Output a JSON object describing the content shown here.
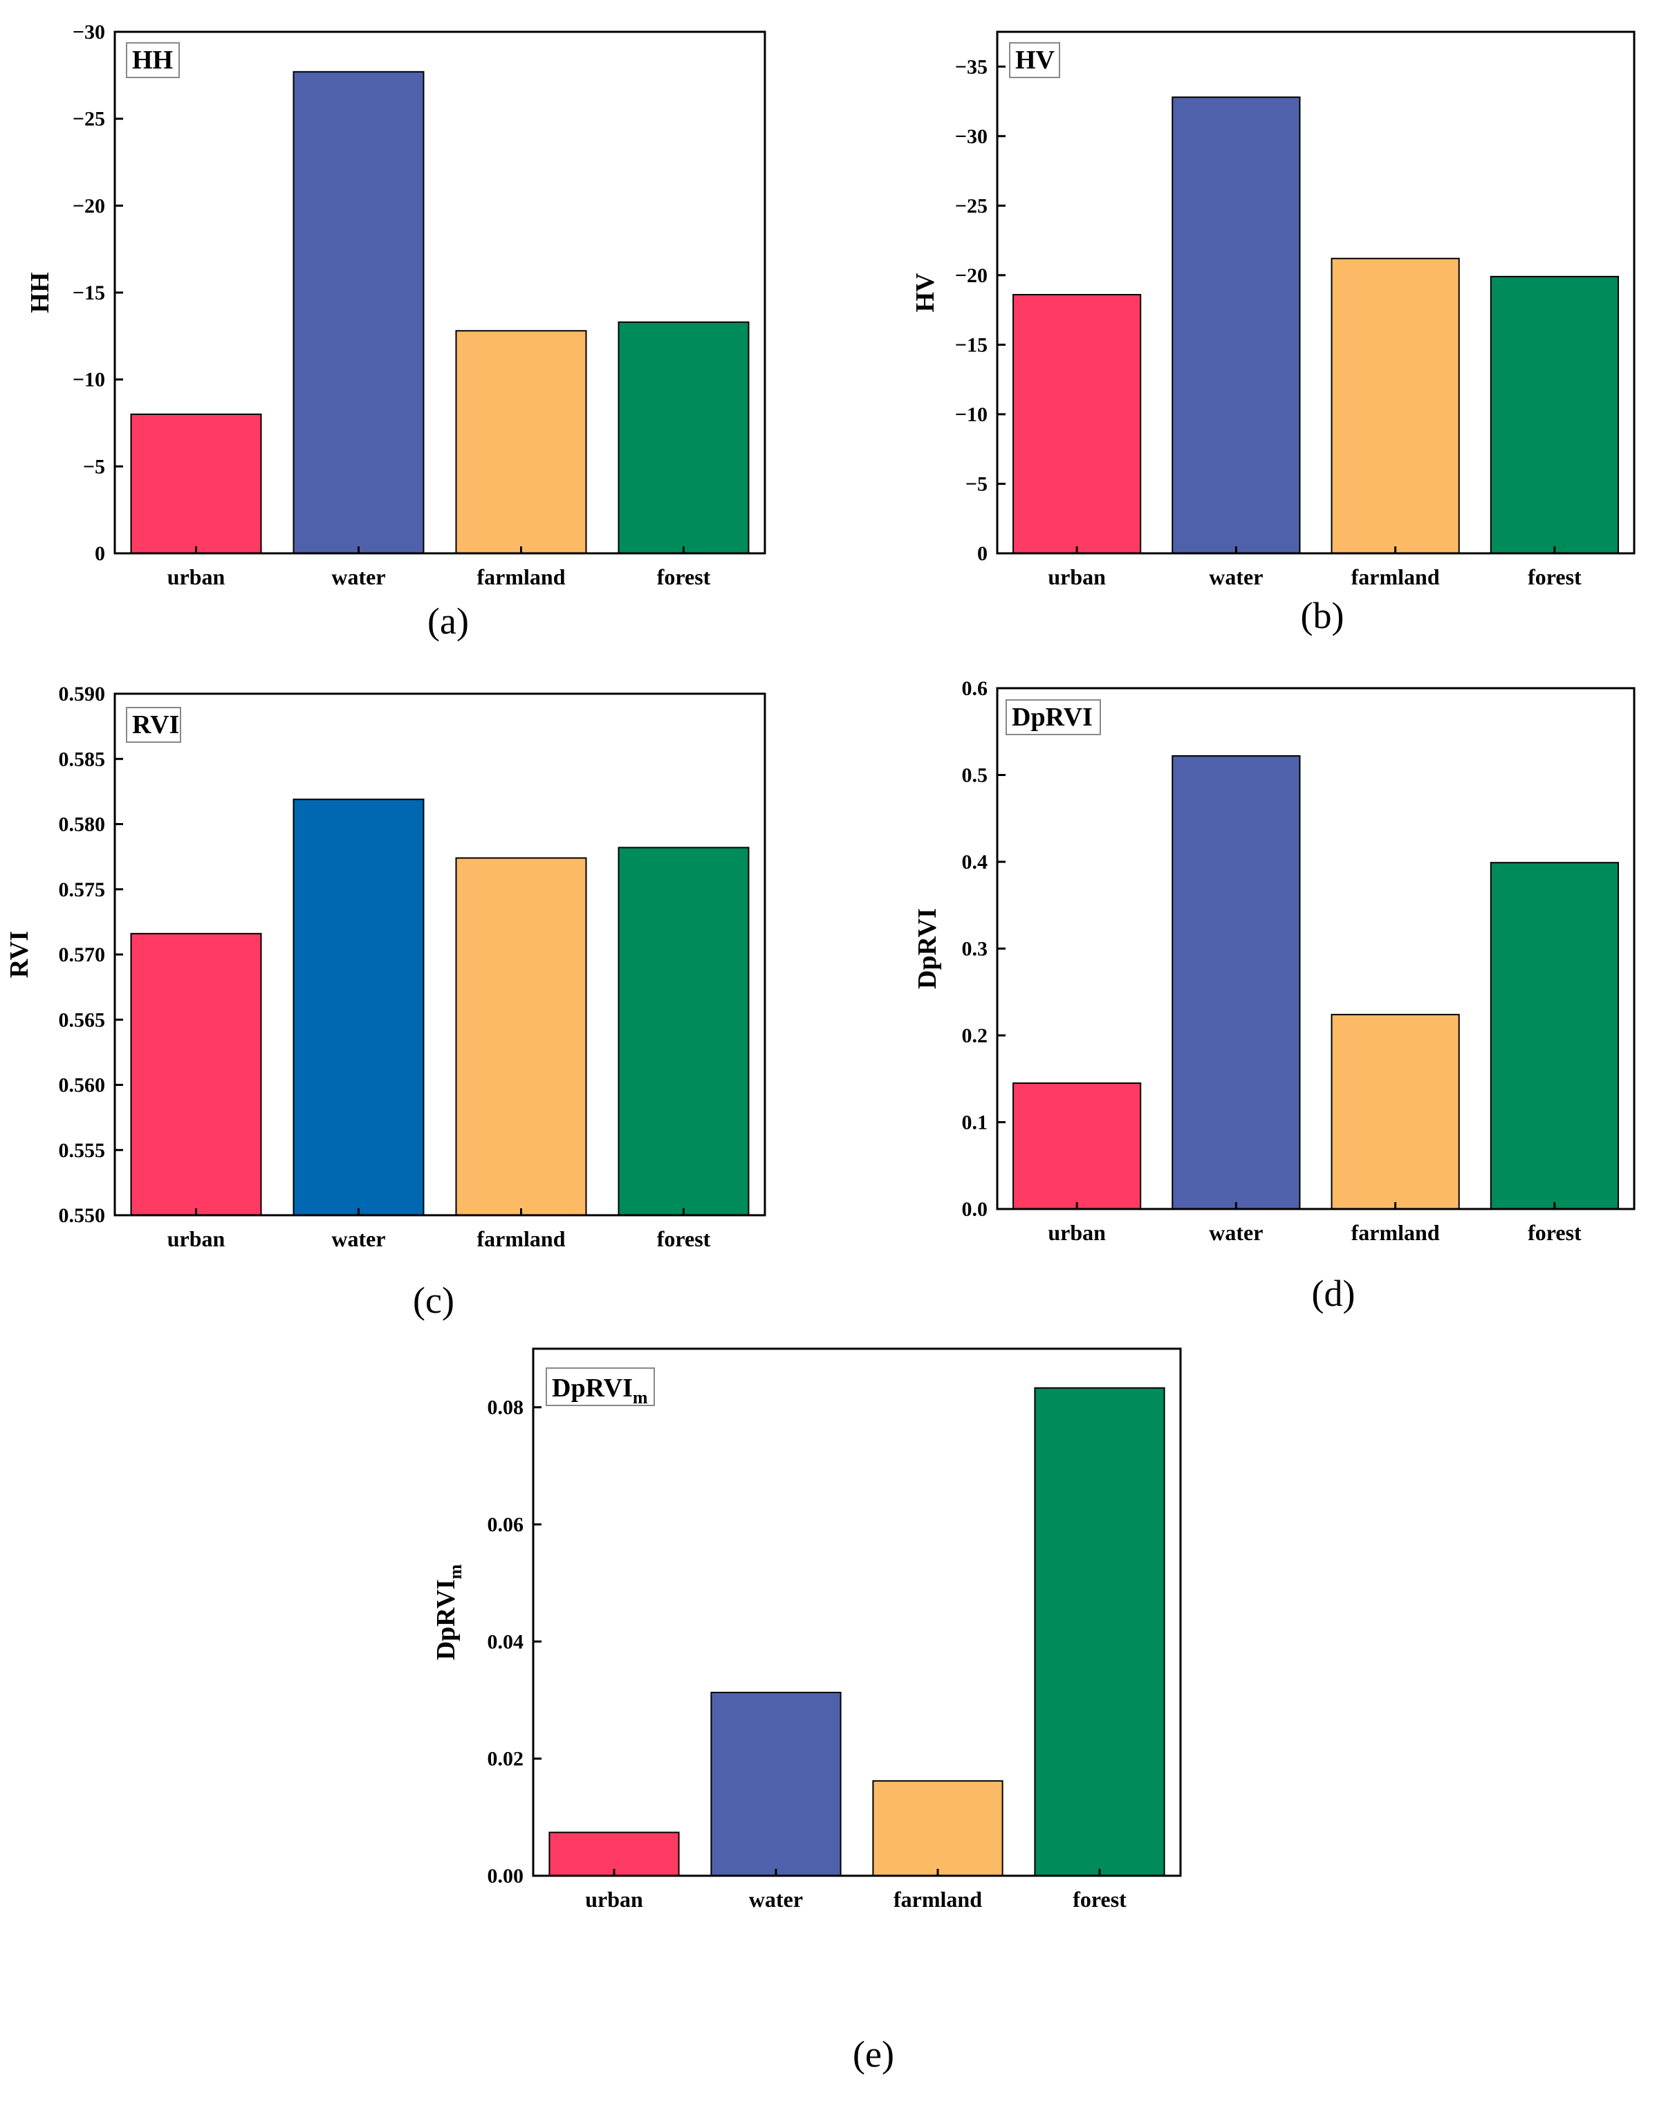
{
  "colors": {
    "urban": "#ff3a63",
    "water": "#5061ab",
    "water_alt": "#0068b1",
    "farmland": "#fdba66",
    "forest": "#008b5b"
  },
  "chart_data": [
    {
      "id": "a",
      "type": "bar",
      "title": "HH",
      "ylabel": "HH",
      "sublabel": "(a)",
      "categories": [
        "urban",
        "water",
        "farmland",
        "forest"
      ],
      "values": [
        -8.0,
        -27.7,
        -12.8,
        -13.3
      ],
      "ylim": [
        0,
        -30
      ],
      "yticks": [
        0,
        -5,
        -10,
        -15,
        -20,
        -25,
        -30
      ],
      "ytick_labels": [
        "0",
        "−5",
        "−10",
        "−15",
        "−20",
        "−25",
        "−30"
      ],
      "bar_colors": [
        "#ff3a63",
        "#5061ab",
        "#fdba66",
        "#008b5b"
      ]
    },
    {
      "id": "b",
      "type": "bar",
      "title": "HV",
      "ylabel": "HV",
      "sublabel": "(b)",
      "categories": [
        "urban",
        "water",
        "farmland",
        "forest"
      ],
      "values": [
        -18.6,
        -32.8,
        -21.2,
        -19.9
      ],
      "ylim": [
        0,
        -37.5
      ],
      "yticks": [
        0,
        -5,
        -10,
        -15,
        -20,
        -25,
        -30,
        -35
      ],
      "ytick_labels": [
        "0",
        "−5",
        "−10",
        "−15",
        "−20",
        "−25",
        "−30",
        "−35"
      ],
      "bar_colors": [
        "#ff3a63",
        "#5061ab",
        "#fdba66",
        "#008b5b"
      ]
    },
    {
      "id": "c",
      "type": "bar",
      "title": "RVI",
      "ylabel": "RVI",
      "sublabel": "(c)",
      "categories": [
        "urban",
        "water",
        "farmland",
        "forest"
      ],
      "values": [
        0.5716,
        0.5819,
        0.5774,
        0.5782
      ],
      "ylim": [
        0.55,
        0.59
      ],
      "yticks": [
        0.55,
        0.555,
        0.56,
        0.565,
        0.57,
        0.575,
        0.58,
        0.585,
        0.59
      ],
      "ytick_labels": [
        "0.550",
        "0.555",
        "0.560",
        "0.565",
        "0.570",
        "0.575",
        "0.580",
        "0.585",
        "0.590"
      ],
      "bar_colors": [
        "#ff3a63",
        "#0068b1",
        "#fdba66",
        "#008b5b"
      ]
    },
    {
      "id": "d",
      "type": "bar",
      "title": "DpRVI",
      "ylabel": "DpRVI",
      "sublabel": "(d)",
      "categories": [
        "urban",
        "water",
        "farmland",
        "forest"
      ],
      "values": [
        0.145,
        0.522,
        0.224,
        0.399
      ],
      "ylim": [
        0,
        0.6
      ],
      "yticks": [
        0,
        0.1,
        0.2,
        0.3,
        0.4,
        0.5,
        0.6
      ],
      "ytick_labels": [
        "0.0",
        "0.1",
        "0.2",
        "0.3",
        "0.4",
        "0.5",
        "0.6"
      ],
      "bar_colors": [
        "#ff3a63",
        "#5061ab",
        "#fdba66",
        "#008b5b"
      ]
    },
    {
      "id": "e",
      "type": "bar",
      "title": "DpRVI",
      "title_sub": "m",
      "ylabel": "DpRVI",
      "ylabel_sub": "m",
      "sublabel": "(e)",
      "categories": [
        "urban",
        "water",
        "farmland",
        "forest"
      ],
      "values": [
        0.0074,
        0.0313,
        0.0162,
        0.0833
      ],
      "ylim": [
        0,
        0.09
      ],
      "yticks": [
        0,
        0.02,
        0.04,
        0.06,
        0.08
      ],
      "ytick_labels": [
        "0.00",
        "0.02",
        "0.04",
        "0.06",
        "0.08"
      ],
      "bar_colors": [
        "#ff3a63",
        "#5061ab",
        "#fdba66",
        "#008b5b"
      ]
    }
  ]
}
